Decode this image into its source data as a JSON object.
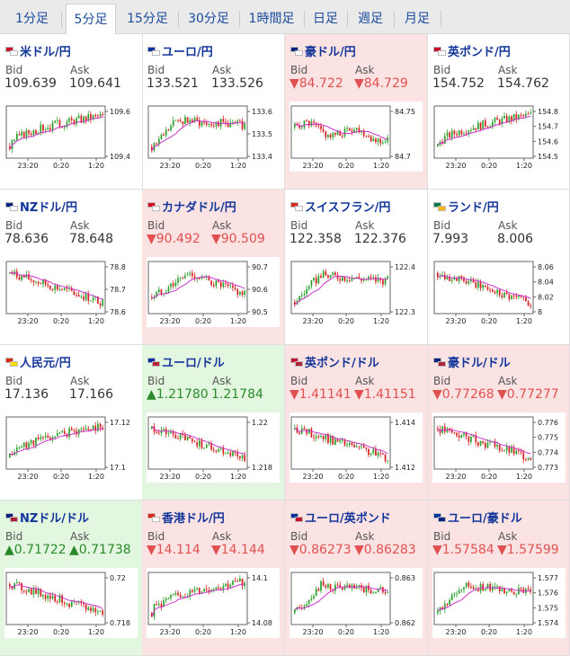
{
  "tabs": [
    {
      "label": "1分足",
      "active": false
    },
    {
      "label": "5分足",
      "active": true
    },
    {
      "label": "15分足",
      "active": false
    },
    {
      "label": "30分足",
      "active": false
    },
    {
      "label": "1時間足",
      "active": false
    },
    {
      "label": "日足",
      "active": false
    },
    {
      "label": "週足",
      "active": false
    },
    {
      "label": "月足",
      "active": false
    }
  ],
  "labels": {
    "bid": "Bid",
    "ask": "Ask"
  },
  "colors": {
    "up_bg": "#e3f7e0",
    "down_bg": "#fce3e3",
    "bull": "#2ca02c",
    "bear": "#d62020",
    "ma": "#cc33cc",
    "link": "#12359a"
  },
  "x_ticks": [
    "23:20",
    "0:20",
    "1:20"
  ],
  "pairs": [
    {
      "name": "米ドル/円",
      "bid": "109.639",
      "ask": "109.641",
      "dir": "none",
      "flag": [
        "#c8102e",
        "#ffffff"
      ],
      "yticks": [
        "109.6",
        "109.4"
      ],
      "trend": "up"
    },
    {
      "name": "ユーロ/円",
      "bid": "133.521",
      "ask": "133.526",
      "dir": "none",
      "flag": [
        "#0033a0",
        "#ffffff"
      ],
      "yticks": [
        "133.6",
        "133.5",
        "133.4"
      ],
      "trend": "upflat"
    },
    {
      "name": "豪ドル/円",
      "bid": "▼84.722",
      "ask": "▼84.729",
      "dir": "down",
      "flag": [
        "#00247d",
        "#ffffff"
      ],
      "yticks": [
        "84.75",
        "84.7"
      ],
      "trend": "flatdown"
    },
    {
      "name": "英ポンド/円",
      "bid": "154.752",
      "ask": "154.762",
      "dir": "none",
      "flag": [
        "#c8102e",
        "#ffffff"
      ],
      "yticks": [
        "154.8",
        "154.7",
        "154.6",
        "154.5"
      ],
      "trend": "up"
    },
    {
      "name": "NZドル/円",
      "bid": "78.636",
      "ask": "78.648",
      "dir": "none",
      "flag": [
        "#00247d",
        "#ffffff"
      ],
      "yticks": [
        "78.8",
        "78.7",
        "78.6"
      ],
      "trend": "down"
    },
    {
      "name": "カナダドル/円",
      "bid": "▼90.492",
      "ask": "▼90.509",
      "dir": "down",
      "flag": [
        "#d80621",
        "#ffffff"
      ],
      "yticks": [
        "90.7",
        "90.6",
        "90.5"
      ],
      "trend": "updown"
    },
    {
      "name": "スイスフラン/円",
      "bid": "122.358",
      "ask": "122.376",
      "dir": "none",
      "flag": [
        "#d52b1e",
        "#ffffff"
      ],
      "yticks": [
        "122.4",
        "122.3"
      ],
      "trend": "upflat"
    },
    {
      "name": "ランド/円",
      "bid": "7.993",
      "ask": "8.006",
      "dir": "none",
      "flag": [
        "#007a4d",
        "#ffb612"
      ],
      "yticks": [
        "8.06",
        "8.04",
        "8.02",
        "8"
      ],
      "trend": "down"
    },
    {
      "name": "人民元/円",
      "bid": "17.136",
      "ask": "17.166",
      "dir": "none",
      "flag": [
        "#de2910",
        "#ffde00"
      ],
      "yticks": [
        "17.12",
        "17.1"
      ],
      "trend": "up"
    },
    {
      "name": "ユーロ/ドル",
      "bid": "▲1.21780",
      "ask": "1.21784",
      "dir": "up",
      "flag": [
        "#0033a0",
        "#b22234"
      ],
      "yticks": [
        "1.22",
        "1.218"
      ],
      "trend": "down"
    },
    {
      "name": "英ポンド/ドル",
      "bid": "▼1.41141",
      "ask": "▼1.41151",
      "dir": "down",
      "flag": [
        "#c8102e",
        "#b22234"
      ],
      "yticks": [
        "1.414",
        "1.412"
      ],
      "trend": "down"
    },
    {
      "name": "豪ドル/ドル",
      "bid": "▼0.77268",
      "ask": "▼0.77277",
      "dir": "down",
      "flag": [
        "#00247d",
        "#b22234"
      ],
      "yticks": [
        "0.776",
        "0.775",
        "0.774",
        "0.773"
      ],
      "trend": "down"
    },
    {
      "name": "NZドル/ドル",
      "bid": "▲0.71722",
      "ask": "▲0.71738",
      "dir": "up",
      "flag": [
        "#00247d",
        "#b22234"
      ],
      "yticks": [
        "0.72",
        "0.718"
      ],
      "trend": "down"
    },
    {
      "name": "香港ドル/円",
      "bid": "▼14.114",
      "ask": "▼14.144",
      "dir": "down",
      "flag": [
        "#de2910",
        "#ffffff"
      ],
      "yticks": [
        "14.1",
        "14.08"
      ],
      "trend": "up"
    },
    {
      "name": "ユーロ/英ポンド",
      "bid": "▼0.86273",
      "ask": "▼0.86283",
      "dir": "down",
      "flag": [
        "#0033a0",
        "#c8102e"
      ],
      "yticks": [
        "0.863",
        "0.862"
      ],
      "trend": "upflat"
    },
    {
      "name": "ユーロ/豪ドル",
      "bid": "▼1.57584",
      "ask": "▼1.57599",
      "dir": "down",
      "flag": [
        "#0033a0",
        "#00247d"
      ],
      "yticks": [
        "1.577",
        "1.576",
        "1.575",
        "1.574"
      ],
      "trend": "upflat"
    }
  ]
}
